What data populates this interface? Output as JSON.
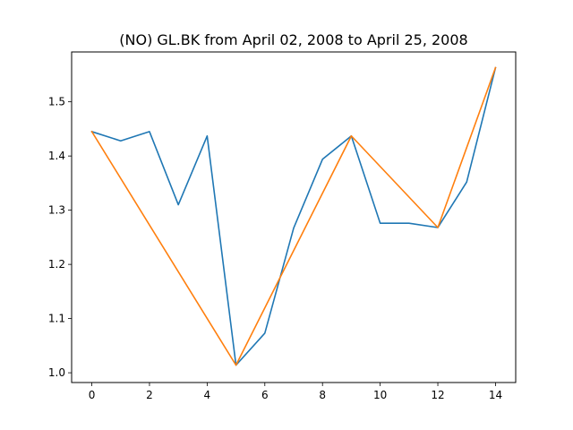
{
  "chart_data": {
    "type": "line",
    "title": "(NO) GL.BK from April 02, 2008 to April 25, 2008",
    "xlabel": "",
    "ylabel": "",
    "xlim": [
      -0.7,
      14.7
    ],
    "ylim": [
      0.982,
      1.592
    ],
    "x_ticks": [
      0,
      2,
      4,
      6,
      8,
      10,
      12,
      14
    ],
    "y_ticks": [
      1.0,
      1.1,
      1.2,
      1.3,
      1.4,
      1.5
    ],
    "grid": false,
    "series": [
      {
        "color": "#1f77b4",
        "x": [
          0,
          1,
          2,
          3,
          4,
          5,
          6,
          7,
          8,
          9,
          10,
          11,
          12,
          13,
          14
        ],
        "y": [
          1.445,
          1.428,
          1.445,
          1.31,
          1.437,
          1.014,
          1.073,
          1.267,
          1.394,
          1.437,
          1.276,
          1.276,
          1.268,
          1.352,
          1.563
        ]
      },
      {
        "color": "#ff7f0e",
        "x": [
          0,
          5,
          9,
          12,
          14
        ],
        "y": [
          1.445,
          1.014,
          1.437,
          1.268,
          1.563
        ]
      }
    ]
  }
}
